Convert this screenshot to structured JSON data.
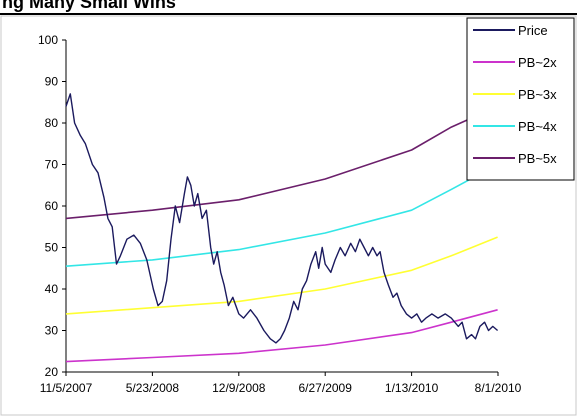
{
  "header": {
    "title_fragment": "ng Many Small Wins"
  },
  "chart_data": {
    "type": "line",
    "title": "",
    "xlabel": "",
    "ylabel": "",
    "ylim": [
      20,
      100
    ],
    "yticks": [
      20,
      30,
      40,
      50,
      60,
      70,
      80,
      90,
      100
    ],
    "xlim": [
      "2007-11-05",
      "2010-08-01"
    ],
    "xticks": [
      "11/5/2007",
      "5/23/2008",
      "12/9/2008",
      "6/27/2009",
      "1/13/2010",
      "8/1/2010"
    ],
    "grid": false,
    "legend_position": "top-right",
    "series": [
      {
        "name": "Price",
        "color": "#1b1a5e",
        "points": [
          [
            "2007-11-05",
            84
          ],
          [
            "2007-11-15",
            87
          ],
          [
            "2007-11-25",
            80
          ],
          [
            "2007-12-08",
            77
          ],
          [
            "2007-12-20",
            75
          ],
          [
            "2008-01-05",
            70
          ],
          [
            "2008-01-18",
            68
          ],
          [
            "2008-02-01",
            62
          ],
          [
            "2008-02-10",
            57
          ],
          [
            "2008-02-20",
            55
          ],
          [
            "2008-03-01",
            46
          ],
          [
            "2008-03-10",
            48
          ],
          [
            "2008-03-25",
            52
          ],
          [
            "2008-04-10",
            53
          ],
          [
            "2008-04-25",
            51
          ],
          [
            "2008-05-10",
            47
          ],
          [
            "2008-05-25",
            40
          ],
          [
            "2008-06-05",
            36
          ],
          [
            "2008-06-15",
            37
          ],
          [
            "2008-06-25",
            42
          ],
          [
            "2008-07-05",
            52
          ],
          [
            "2008-07-15",
            60
          ],
          [
            "2008-07-25",
            56
          ],
          [
            "2008-08-05",
            63
          ],
          [
            "2008-08-12",
            67
          ],
          [
            "2008-08-20",
            65
          ],
          [
            "2008-08-28",
            60
          ],
          [
            "2008-09-05",
            63
          ],
          [
            "2008-09-15",
            57
          ],
          [
            "2008-09-25",
            59
          ],
          [
            "2008-10-05",
            50
          ],
          [
            "2008-10-12",
            46
          ],
          [
            "2008-10-20",
            49
          ],
          [
            "2008-10-28",
            44
          ],
          [
            "2008-11-05",
            41
          ],
          [
            "2008-11-15",
            36
          ],
          [
            "2008-11-25",
            38
          ],
          [
            "2008-12-09",
            34
          ],
          [
            "2008-12-20",
            33
          ],
          [
            "2009-01-05",
            35
          ],
          [
            "2009-01-20",
            33
          ],
          [
            "2009-02-05",
            30
          ],
          [
            "2009-02-20",
            28
          ],
          [
            "2009-03-05",
            27
          ],
          [
            "2009-03-15",
            28
          ],
          [
            "2009-03-25",
            30
          ],
          [
            "2009-04-05",
            33
          ],
          [
            "2009-04-15",
            37
          ],
          [
            "2009-04-25",
            35
          ],
          [
            "2009-05-05",
            40
          ],
          [
            "2009-05-15",
            42
          ],
          [
            "2009-05-25",
            46
          ],
          [
            "2009-06-05",
            49
          ],
          [
            "2009-06-12",
            45
          ],
          [
            "2009-06-20",
            50
          ],
          [
            "2009-06-27",
            46
          ],
          [
            "2009-07-10",
            44
          ],
          [
            "2009-07-20",
            47
          ],
          [
            "2009-08-01",
            50
          ],
          [
            "2009-08-12",
            48
          ],
          [
            "2009-08-25",
            51
          ],
          [
            "2009-09-05",
            49
          ],
          [
            "2009-09-15",
            52
          ],
          [
            "2009-09-25",
            50
          ],
          [
            "2009-10-05",
            48
          ],
          [
            "2009-10-15",
            50
          ],
          [
            "2009-10-25",
            48
          ],
          [
            "2009-11-01",
            49
          ],
          [
            "2009-11-10",
            44
          ],
          [
            "2009-11-20",
            41
          ],
          [
            "2009-12-01",
            38
          ],
          [
            "2009-12-10",
            39
          ],
          [
            "2009-12-20",
            36
          ],
          [
            "2010-01-01",
            34
          ],
          [
            "2010-01-13",
            33
          ],
          [
            "2010-01-25",
            34
          ],
          [
            "2010-02-05",
            32
          ],
          [
            "2010-02-15",
            33
          ],
          [
            "2010-03-01",
            34
          ],
          [
            "2010-03-15",
            33
          ],
          [
            "2010-04-01",
            34
          ],
          [
            "2010-04-15",
            33
          ],
          [
            "2010-05-01",
            31
          ],
          [
            "2010-05-10",
            32
          ],
          [
            "2010-05-20",
            28
          ],
          [
            "2010-06-01",
            29
          ],
          [
            "2010-06-10",
            28
          ],
          [
            "2010-06-20",
            31
          ],
          [
            "2010-07-01",
            32
          ],
          [
            "2010-07-10",
            30
          ],
          [
            "2010-07-20",
            31
          ],
          [
            "2010-07-31",
            30
          ]
        ]
      },
      {
        "name": "PB~2x",
        "color": "#cc33cc",
        "points": [
          [
            "2007-11-05",
            22.5
          ],
          [
            "2008-05-23",
            23.5
          ],
          [
            "2008-12-09",
            24.5
          ],
          [
            "2009-06-27",
            26.5
          ],
          [
            "2010-01-13",
            29.5
          ],
          [
            "2010-04-15",
            32
          ],
          [
            "2010-07-31",
            35
          ]
        ]
      },
      {
        "name": "PB~3x",
        "color": "#ffff33",
        "points": [
          [
            "2007-11-05",
            34
          ],
          [
            "2008-05-23",
            35.5
          ],
          [
            "2008-12-09",
            37
          ],
          [
            "2009-06-27",
            40
          ],
          [
            "2010-01-13",
            44.5
          ],
          [
            "2010-04-15",
            48
          ],
          [
            "2010-07-31",
            52.5
          ]
        ]
      },
      {
        "name": "PB~4x",
        "color": "#33e6e6",
        "points": [
          [
            "2007-11-05",
            45.5
          ],
          [
            "2008-05-23",
            47
          ],
          [
            "2008-12-09",
            49.5
          ],
          [
            "2009-06-27",
            53.5
          ],
          [
            "2010-01-13",
            59
          ],
          [
            "2010-04-15",
            64
          ],
          [
            "2010-07-31",
            70
          ]
        ]
      },
      {
        "name": "PB~5x",
        "color": "#6b1f6b",
        "points": [
          [
            "2007-11-05",
            57
          ],
          [
            "2008-05-23",
            59
          ],
          [
            "2008-12-09",
            61.5
          ],
          [
            "2009-06-27",
            66.5
          ],
          [
            "2010-01-13",
            73.5
          ],
          [
            "2010-04-15",
            79
          ],
          [
            "2010-07-31",
            84
          ]
        ]
      }
    ]
  }
}
